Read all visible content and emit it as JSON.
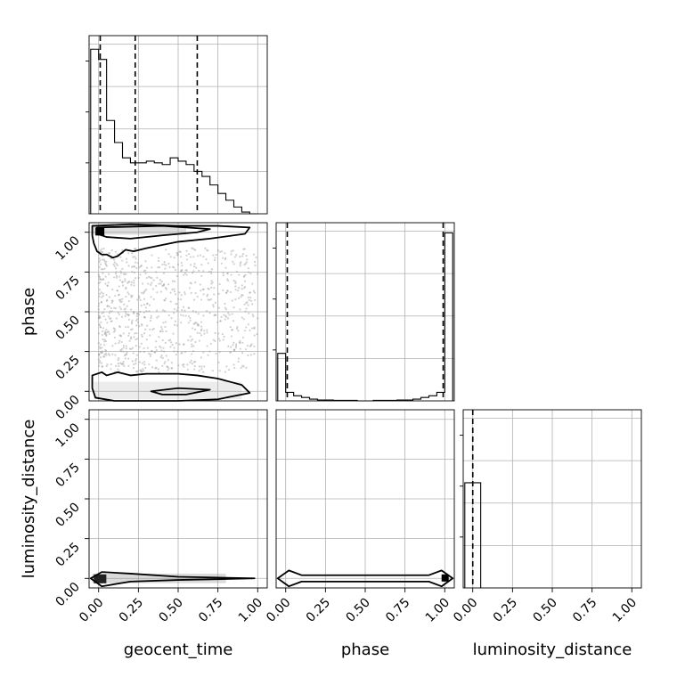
{
  "chart_data": {
    "type": "corner",
    "params": [
      "geocent_time",
      "phase",
      "luminosity_distance"
    ],
    "axis_labels": {
      "x": [
        "geocent_time",
        "phase",
        "luminosity_distance"
      ],
      "y": [
        "phase",
        "luminosity_distance"
      ]
    },
    "tick_values": [
      0.0,
      0.25,
      0.5,
      0.75,
      1.0
    ],
    "tick_labels": [
      "0.00",
      "0.25",
      "0.50",
      "0.75",
      "1.00"
    ],
    "axis_range": [
      -0.06,
      1.06
    ],
    "grid": true,
    "histograms": [
      {
        "param": "geocent_time",
        "bin_edges": [
          -0.05,
          0.0,
          0.05,
          0.1,
          0.15,
          0.2,
          0.25,
          0.3,
          0.35,
          0.4,
          0.45,
          0.5,
          0.55,
          0.6,
          0.65,
          0.7,
          0.75,
          0.8,
          0.85,
          0.9,
          0.95,
          1.0
        ],
        "heights": [
          0.97,
          0.91,
          0.55,
          0.42,
          0.33,
          0.3,
          0.3,
          0.31,
          0.3,
          0.29,
          0.33,
          0.31,
          0.29,
          0.25,
          0.22,
          0.17,
          0.12,
          0.08,
          0.04,
          0.01,
          0.0
        ],
        "quantile_lines": [
          0.01,
          0.23,
          0.62
        ]
      },
      {
        "param": "phase",
        "bin_edges": [
          -0.05,
          0.0,
          0.05,
          0.1,
          0.15,
          0.2,
          0.25,
          0.3,
          0.35,
          0.4,
          0.45,
          0.5,
          0.55,
          0.6,
          0.65,
          0.7,
          0.75,
          0.8,
          0.85,
          0.9,
          0.95,
          1.0,
          1.05
        ],
        "heights": [
          0.28,
          0.05,
          0.03,
          0.02,
          0.01,
          0.005,
          0.005,
          0.003,
          0.003,
          0.003,
          0.0,
          0.0,
          0.003,
          0.003,
          0.003,
          0.005,
          0.005,
          0.01,
          0.02,
          0.03,
          0.05,
          0.99
        ],
        "quantile_lines": [
          0.01,
          0.99
        ]
      },
      {
        "param": "luminosity_distance",
        "bin_edges": [
          -0.05,
          0.0,
          0.05
        ],
        "heights": [
          0.62,
          0.62
        ],
        "quantile_lines": [
          0.0
        ]
      }
    ],
    "contour_panels": [
      {
        "x_param": "geocent_time",
        "y_param": "phase",
        "contours": [
          [
            [
              -0.04,
              1.04
            ],
            [
              0.2,
              1.05
            ],
            [
              0.5,
              1.04
            ],
            [
              0.75,
              1.04
            ],
            [
              0.95,
              1.03
            ],
            [
              0.92,
              0.99
            ],
            [
              0.7,
              0.96
            ],
            [
              0.5,
              0.94
            ],
            [
              0.3,
              0.9
            ],
            [
              0.22,
              0.88
            ],
            [
              0.17,
              0.89
            ],
            [
              0.12,
              0.85
            ],
            [
              0.09,
              0.84
            ],
            [
              0.05,
              0.86
            ],
            [
              0.02,
              0.86
            ],
            [
              -0.01,
              0.88
            ],
            [
              -0.03,
              0.93
            ],
            [
              -0.04,
              0.98
            ],
            [
              -0.04,
              1.04
            ]
          ],
          [
            [
              -0.01,
              1.03
            ],
            [
              0.4,
              1.04
            ],
            [
              0.7,
              1.02
            ],
            [
              0.62,
              1.0
            ],
            [
              0.4,
              0.98
            ],
            [
              0.2,
              0.96
            ],
            [
              0.05,
              0.97
            ],
            [
              -0.01,
              0.99
            ],
            [
              -0.01,
              1.03
            ]
          ],
          [
            [
              -0.04,
              0.1
            ],
            [
              0.02,
              0.12
            ],
            [
              0.05,
              0.1
            ],
            [
              0.12,
              0.12
            ],
            [
              0.2,
              0.1
            ],
            [
              0.3,
              0.11
            ],
            [
              0.4,
              0.11
            ],
            [
              0.5,
              0.11
            ],
            [
              0.62,
              0.1
            ],
            [
              0.75,
              0.08
            ],
            [
              0.9,
              0.04
            ],
            [
              0.95,
              -0.01
            ],
            [
              0.75,
              -0.05
            ],
            [
              0.5,
              -0.06
            ],
            [
              0.3,
              -0.06
            ],
            [
              0.1,
              -0.06
            ],
            [
              -0.02,
              -0.04
            ],
            [
              -0.04,
              0.02
            ],
            [
              -0.04,
              0.1
            ]
          ],
          [
            [
              0.33,
              0.0
            ],
            [
              0.5,
              0.02
            ],
            [
              0.7,
              0.01
            ],
            [
              0.55,
              -0.02
            ],
            [
              0.4,
              -0.02
            ],
            [
              0.33,
              0.0
            ]
          ]
        ]
      },
      {
        "x_param": "geocent_time",
        "y_param": "luminosity_distance",
        "contours": [
          [
            [
              -0.05,
              0.0
            ],
            [
              0.02,
              0.04
            ],
            [
              0.2,
              0.03
            ],
            [
              0.5,
              0.01
            ],
            [
              0.98,
              0.0
            ],
            [
              0.5,
              -0.01
            ],
            [
              0.2,
              -0.02
            ],
            [
              0.02,
              -0.05
            ],
            [
              -0.05,
              0.0
            ]
          ]
        ]
      },
      {
        "x_param": "phase",
        "y_param": "luminosity_distance",
        "contours": [
          [
            [
              -0.05,
              0.0
            ],
            [
              0.02,
              0.05
            ],
            [
              0.1,
              0.02
            ],
            [
              0.9,
              0.02
            ],
            [
              0.98,
              0.05
            ],
            [
              1.05,
              0.0
            ],
            [
              0.98,
              -0.05
            ],
            [
              0.9,
              -0.02
            ],
            [
              0.1,
              -0.02
            ],
            [
              0.02,
              -0.05
            ],
            [
              -0.05,
              0.0
            ]
          ]
        ]
      }
    ]
  }
}
